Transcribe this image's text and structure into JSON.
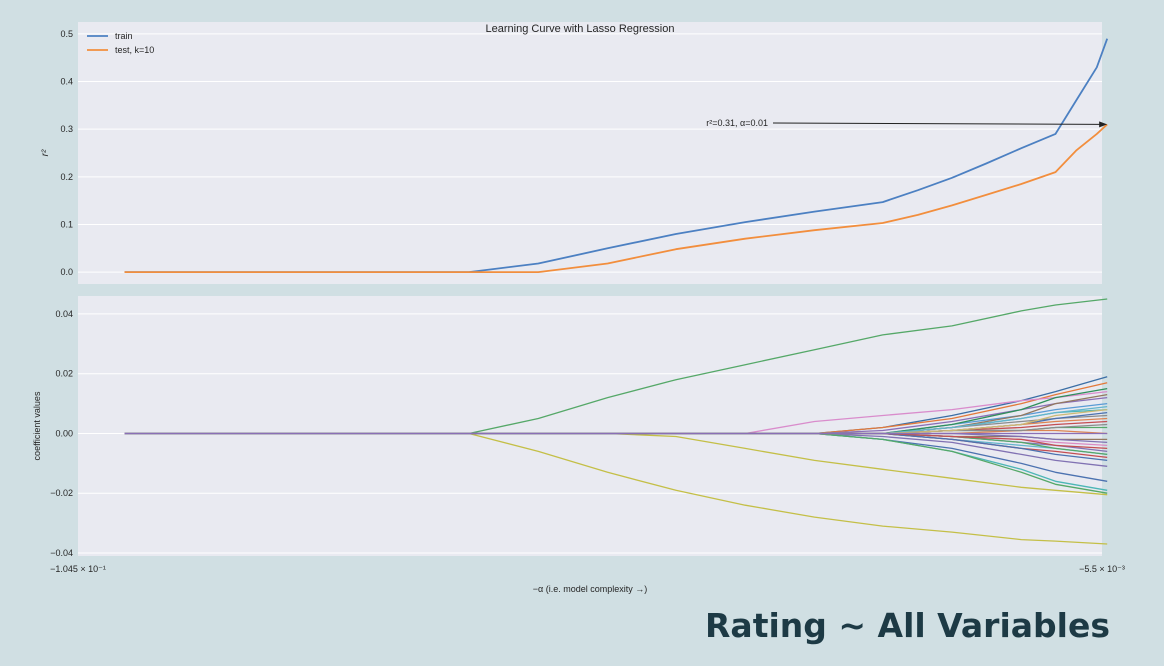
{
  "slide": {
    "title": "Rating ~ All Variables"
  },
  "colors": {
    "background": "#d0dfe3",
    "plot_bg": "#e9eaf1",
    "grid": "#ffffff",
    "train": "#4c80c2",
    "test": "#f28e3d",
    "title_text": "#1d3a45"
  },
  "chart_data": [
    {
      "type": "line",
      "title": "Learning Curve with Lasso Regression",
      "xlabel": "",
      "ylabel": "r²",
      "ylim": [
        -0.025,
        0.525
      ],
      "yticks": [
        0.0,
        0.1,
        0.2,
        0.3,
        0.4,
        0.5
      ],
      "ytick_labels": [
        "0.0",
        "0.1",
        "0.2",
        "0.3",
        "0.4",
        "0.5"
      ],
      "xlim": [
        -0.1045,
        -0.0055
      ],
      "grid": true,
      "legend": "top-left",
      "series": [
        {
          "name": "train",
          "color": "#4c80c2",
          "x": [
            -0.1,
            -0.0933,
            -0.0867,
            -0.08,
            -0.0733,
            -0.0667,
            -0.06,
            -0.0533,
            -0.0467,
            -0.04,
            -0.0333,
            -0.0267,
            -0.0233,
            -0.02,
            -0.0167,
            -0.0133,
            -0.01,
            -0.008,
            -0.006,
            -0.005
          ],
          "y": [
            0.0,
            0.0,
            0.0,
            0.0,
            0.0,
            0.0,
            0.018,
            0.05,
            0.08,
            0.105,
            0.127,
            0.147,
            0.172,
            0.198,
            0.228,
            0.26,
            0.29,
            0.36,
            0.43,
            0.49
          ]
        },
        {
          "name": "test, k=10",
          "color": "#f28e3d",
          "x": [
            -0.1,
            -0.0933,
            -0.0867,
            -0.08,
            -0.0733,
            -0.0667,
            -0.06,
            -0.0533,
            -0.0467,
            -0.04,
            -0.0333,
            -0.0267,
            -0.0233,
            -0.02,
            -0.0167,
            -0.0133,
            -0.01,
            -0.008,
            -0.006,
            -0.005
          ],
          "y": [
            0.0,
            0.0,
            0.0,
            0.0,
            0.0,
            0.0,
            0.0,
            0.018,
            0.048,
            0.07,
            0.088,
            0.103,
            0.12,
            0.14,
            0.162,
            0.185,
            0.21,
            0.255,
            0.29,
            0.31
          ]
        }
      ],
      "annotations": [
        {
          "text": "r²=0.31, α=0.01",
          "points_to": {
            "x": -0.005,
            "y": 0.31
          }
        }
      ]
    },
    {
      "type": "line",
      "title": "",
      "xlabel": "−α (i.e. model complexity →)",
      "ylabel": "coefficient values",
      "ylim": [
        -0.041,
        0.046
      ],
      "yticks": [
        -0.04,
        -0.02,
        0.0,
        0.02,
        0.04
      ],
      "ytick_labels": [
        "−0.04",
        "−0.02",
        "0.00",
        "0.02",
        "0.04"
      ],
      "xlim": [
        -0.1045,
        -0.0055
      ],
      "xtick_labels": [
        "−1.045 × 10⁻¹",
        "−5.5 × 10⁻³"
      ],
      "grid": true,
      "legend": "none",
      "series": [
        {
          "color": "#55a868",
          "x": [
            -0.1,
            -0.0667,
            -0.06,
            -0.0533,
            -0.0467,
            -0.04,
            -0.0333,
            -0.0267,
            -0.02,
            -0.0133,
            -0.01,
            -0.005
          ],
          "y": [
            0,
            0,
            0.005,
            0.012,
            0.018,
            0.023,
            0.028,
            0.033,
            0.036,
            0.041,
            0.043,
            0.045
          ]
        },
        {
          "color": "#c4bf47",
          "x": [
            -0.1,
            -0.0667,
            -0.06,
            -0.0533,
            -0.0467,
            -0.04,
            -0.0333,
            -0.0267,
            -0.02,
            -0.0133,
            -0.01,
            -0.005
          ],
          "y": [
            0,
            0,
            -0.006,
            -0.013,
            -0.019,
            -0.024,
            -0.028,
            -0.031,
            -0.033,
            -0.0355,
            -0.036,
            -0.037
          ]
        },
        {
          "color": "#c4bf47",
          "x": [
            -0.1,
            -0.0533,
            -0.0467,
            -0.04,
            -0.0333,
            -0.0267,
            -0.02,
            -0.0133,
            -0.01,
            -0.005
          ],
          "y": [
            0,
            0,
            -0.001,
            -0.005,
            -0.009,
            -0.012,
            -0.015,
            -0.018,
            -0.019,
            -0.0205
          ]
        },
        {
          "color": "#3b6ea5",
          "x": [
            -0.1,
            -0.0333,
            -0.0267,
            -0.02,
            -0.0133,
            -0.01,
            -0.005
          ],
          "y": [
            0,
            0,
            0.002,
            0.006,
            0.011,
            0.014,
            0.019
          ]
        },
        {
          "color": "#e3793a",
          "x": [
            -0.1,
            -0.0333,
            -0.0267,
            -0.02,
            -0.0133,
            -0.01,
            -0.005
          ],
          "y": [
            0,
            0,
            0.002,
            0.005,
            0.01,
            0.013,
            0.017
          ]
        },
        {
          "color": "#d98ccc",
          "x": [
            -0.1,
            -0.04,
            -0.0333,
            -0.0267,
            -0.02,
            -0.0133,
            -0.01,
            -0.005
          ],
          "y": [
            0,
            0,
            0.004,
            0.006,
            0.008,
            0.011,
            0.012,
            0.014
          ]
        },
        {
          "color": "#8a6fb6",
          "x": [
            -0.1,
            -0.0333,
            -0.0267,
            -0.02,
            -0.0133,
            -0.01,
            -0.005
          ],
          "y": [
            0,
            0,
            0.001,
            0.004,
            0.008,
            0.01,
            0.012
          ]
        },
        {
          "color": "#5a9bd5",
          "x": [
            -0.1,
            -0.0267,
            -0.02,
            -0.0133,
            -0.01,
            -0.005
          ],
          "y": [
            0,
            0,
            0.003,
            0.006,
            0.008,
            0.01
          ]
        },
        {
          "color": "#4cb6b6",
          "x": [
            -0.1,
            -0.0267,
            -0.02,
            -0.0133,
            -0.01,
            -0.005
          ],
          "y": [
            0,
            0,
            0.002,
            0.005,
            0.007,
            0.008
          ]
        },
        {
          "color": "#8c8c8c",
          "x": [
            -0.1,
            -0.0267,
            -0.02,
            -0.0133,
            -0.01,
            -0.005
          ],
          "y": [
            0,
            0,
            0.002,
            0.004,
            0.005,
            0.006
          ]
        },
        {
          "color": "#c44e52",
          "x": [
            -0.1,
            -0.0267,
            -0.02,
            -0.0133,
            -0.01,
            -0.005
          ],
          "y": [
            0,
            0,
            0.001,
            0.002,
            0.003,
            0.004
          ]
        },
        {
          "color": "#55a868",
          "x": [
            -0.1,
            -0.0267,
            -0.02,
            -0.0133,
            -0.01,
            -0.005
          ],
          "y": [
            0,
            0,
            0.001,
            0.001,
            0.002,
            0.002
          ]
        },
        {
          "color": "#dd8452",
          "x": [
            -0.1,
            -0.0267,
            -0.02,
            -0.0133,
            -0.01,
            -0.005
          ],
          "y": [
            0,
            0,
            0.0,
            0.001,
            0.001,
            0.0
          ]
        },
        {
          "color": "#937860",
          "x": [
            -0.1,
            -0.0267,
            -0.02,
            -0.0133,
            -0.01,
            -0.005
          ],
          "y": [
            0,
            0,
            -0.001,
            -0.001,
            -0.002,
            -0.002
          ]
        },
        {
          "color": "#da8bc3",
          "x": [
            -0.1,
            -0.0267,
            -0.02,
            -0.0133,
            -0.01,
            -0.005
          ],
          "y": [
            0,
            0,
            -0.001,
            -0.002,
            -0.003,
            -0.004
          ]
        },
        {
          "color": "#8172b3",
          "x": [
            -0.1,
            -0.0267,
            -0.02,
            -0.0133,
            -0.01,
            -0.005
          ],
          "y": [
            0,
            0,
            -0.001,
            -0.003,
            -0.004,
            -0.006
          ]
        },
        {
          "color": "#64b5cd",
          "x": [
            -0.1,
            -0.0267,
            -0.02,
            -0.0133,
            -0.01,
            -0.005
          ],
          "y": [
            0,
            0,
            -0.002,
            -0.004,
            -0.005,
            -0.007
          ]
        },
        {
          "color": "#c44e52",
          "x": [
            -0.1,
            -0.0267,
            -0.02,
            -0.0133,
            -0.01,
            -0.005
          ],
          "y": [
            0,
            0,
            -0.002,
            -0.005,
            -0.006,
            -0.008
          ]
        },
        {
          "color": "#4c72b0",
          "x": [
            -0.1,
            -0.0267,
            -0.02,
            -0.0133,
            -0.01,
            -0.005
          ],
          "y": [
            0,
            0,
            -0.002,
            -0.005,
            -0.007,
            -0.009
          ]
        },
        {
          "color": "#8172b3",
          "x": [
            -0.1,
            -0.0333,
            -0.0267,
            -0.02,
            -0.0133,
            -0.01,
            -0.005
          ],
          "y": [
            0,
            0,
            -0.001,
            -0.003,
            -0.007,
            -0.009,
            -0.011
          ]
        },
        {
          "color": "#4c72b0",
          "x": [
            -0.1,
            -0.0333,
            -0.0267,
            -0.02,
            -0.0133,
            -0.01,
            -0.005
          ],
          "y": [
            0,
            0,
            -0.002,
            -0.005,
            -0.01,
            -0.013,
            -0.016
          ]
        },
        {
          "color": "#4cb6b6",
          "x": [
            -0.1,
            -0.0333,
            -0.0267,
            -0.02,
            -0.0133,
            -0.01,
            -0.005
          ],
          "y": [
            0,
            0,
            -0.002,
            -0.006,
            -0.012,
            -0.016,
            -0.019
          ]
        },
        {
          "color": "#55a868",
          "x": [
            -0.1,
            -0.0333,
            -0.0267,
            -0.02,
            -0.0133,
            -0.01,
            -0.005
          ],
          "y": [
            0,
            0,
            -0.002,
            -0.006,
            -0.013,
            -0.017,
            -0.02
          ]
        },
        {
          "color": "#937860",
          "x": [
            -0.1,
            -0.0267,
            -0.02,
            -0.0133,
            -0.01,
            -0.005
          ],
          "y": [
            0,
            0,
            0.002,
            0.006,
            0.01,
            0.013
          ]
        },
        {
          "color": "#2f8f5b",
          "x": [
            -0.1,
            -0.0267,
            -0.02,
            -0.0133,
            -0.01,
            -0.005
          ],
          "y": [
            0,
            0,
            0.003,
            0.008,
            0.012,
            0.015
          ]
        },
        {
          "color": "#4c72b0",
          "x": [
            -0.1,
            -0.0267,
            -0.02,
            -0.0133,
            -0.01,
            -0.005
          ],
          "y": [
            0,
            0,
            0.001,
            0.003,
            0.005,
            0.007
          ]
        },
        {
          "color": "#dd8452",
          "x": [
            -0.1,
            -0.0267,
            -0.02,
            -0.0133,
            -0.01,
            -0.005
          ],
          "y": [
            0,
            0,
            0.001,
            0.003,
            0.004,
            0.005
          ]
        },
        {
          "color": "#55a868",
          "x": [
            -0.1,
            -0.0267,
            -0.02,
            -0.0133,
            -0.01,
            -0.005
          ],
          "y": [
            0,
            0,
            -0.001,
            -0.003,
            -0.005,
            -0.007
          ]
        },
        {
          "color": "#c44e52",
          "x": [
            -0.1,
            -0.0267,
            -0.02,
            -0.0133,
            -0.01,
            -0.005
          ],
          "y": [
            0,
            0,
            -0.001,
            -0.002,
            -0.004,
            -0.005
          ]
        },
        {
          "color": "#8c8c8c",
          "x": [
            -0.1,
            -0.0267,
            -0.02,
            -0.0133,
            -0.01,
            -0.005
          ],
          "y": [
            0,
            0,
            0.001,
            0.001,
            0.002,
            0.003
          ]
        },
        {
          "color": "#64b5cd",
          "x": [
            -0.1,
            -0.0267,
            -0.02,
            -0.0133,
            -0.01,
            -0.005
          ],
          "y": [
            0,
            0,
            0.002,
            0.005,
            0.007,
            0.009
          ]
        },
        {
          "color": "#ccb974",
          "x": [
            -0.1,
            -0.0267,
            -0.02,
            -0.0133,
            -0.01,
            -0.005
          ],
          "y": [
            0,
            0,
            0.001,
            0.003,
            0.006,
            0.008
          ]
        },
        {
          "color": "#8172b3",
          "x": [
            -0.1,
            -0.0267,
            -0.02,
            -0.0133,
            -0.01,
            -0.005
          ],
          "y": [
            0,
            0,
            0.0,
            -0.001,
            -0.002,
            -0.003
          ]
        },
        {
          "color": "#8a6fb6",
          "x": [
            -0.1,
            -0.0667,
            -0.06,
            -0.0533,
            -0.0467,
            -0.04,
            -0.0333,
            -0.0267,
            -0.02,
            -0.0133,
            -0.01,
            -0.005
          ],
          "y": [
            0,
            0,
            0,
            0,
            0,
            0,
            0,
            0,
            0,
            0,
            0,
            0
          ]
        }
      ]
    }
  ]
}
